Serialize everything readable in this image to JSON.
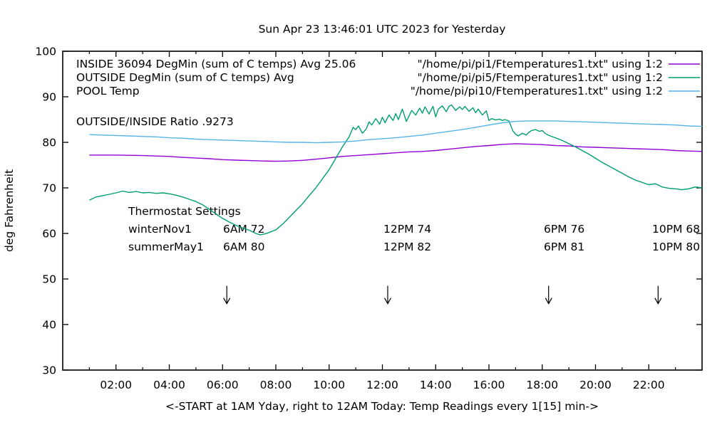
{
  "chart_data": {
    "type": "line",
    "title": "Sun Apr 23 13:46:01 UTC 2023 for Yesterday",
    "xlabel": "<-START at 1AM Yday, right to 12AM Today:  Temp Readings every 1[15] min->",
    "ylabel": "deg Fahrenheit",
    "xlim": [
      0,
      24
    ],
    "ylim": [
      30,
      100
    ],
    "grid": "off",
    "legend_position": "top-inside",
    "x_ticks": [
      {
        "h": 2,
        "label": "02:00"
      },
      {
        "h": 4,
        "label": "04:00"
      },
      {
        "h": 6,
        "label": "06:00"
      },
      {
        "h": 8,
        "label": "08:00"
      },
      {
        "h": 10,
        "label": "10:00"
      },
      {
        "h": 12,
        "label": "12:00"
      },
      {
        "h": 14,
        "label": "14:00"
      },
      {
        "h": 16,
        "label": "16:00"
      },
      {
        "h": 18,
        "label": "18:00"
      },
      {
        "h": 20,
        "label": "20:00"
      },
      {
        "h": 22,
        "label": "22:00"
      }
    ],
    "x_minor_ticks": [
      1,
      3,
      5,
      7,
      9,
      11,
      13,
      15,
      17,
      19,
      21,
      23
    ],
    "y_ticks": [
      30,
      40,
      50,
      60,
      70,
      80,
      90,
      100
    ],
    "series": [
      {
        "name": "INSIDE",
        "legend_left": "INSIDE 36094 DegMin (sum of C temps) Avg 25.06",
        "legend_right": "\"/home/pi/pi1/Ftemperatures1.txt\" using 1:2",
        "color": "#9400d3",
        "points": [
          [
            1,
            77.2
          ],
          [
            1.5,
            77.2
          ],
          [
            2,
            77.2
          ],
          [
            2.5,
            77.15
          ],
          [
            3,
            77.1
          ],
          [
            3.5,
            77.0
          ],
          [
            4,
            76.9
          ],
          [
            4.5,
            76.7
          ],
          [
            5,
            76.55
          ],
          [
            5.5,
            76.4
          ],
          [
            6,
            76.2
          ],
          [
            6.5,
            76.1
          ],
          [
            7,
            76.0
          ],
          [
            7.5,
            75.9
          ],
          [
            8,
            75.85
          ],
          [
            8.5,
            75.9
          ],
          [
            9,
            76.05
          ],
          [
            9.5,
            76.3
          ],
          [
            10,
            76.6
          ],
          [
            10.5,
            76.9
          ],
          [
            11,
            77.1
          ],
          [
            11.5,
            77.3
          ],
          [
            12,
            77.5
          ],
          [
            12.5,
            77.7
          ],
          [
            13,
            77.9
          ],
          [
            13.5,
            78.0
          ],
          [
            14,
            78.2
          ],
          [
            14.5,
            78.5
          ],
          [
            15,
            78.8
          ],
          [
            15.5,
            79.1
          ],
          [
            16,
            79.3
          ],
          [
            16.5,
            79.55
          ],
          [
            17,
            79.7
          ],
          [
            17.5,
            79.6
          ],
          [
            18,
            79.5
          ],
          [
            18.5,
            79.3
          ],
          [
            19,
            79.2
          ],
          [
            19.5,
            79.0
          ],
          [
            20,
            78.9
          ],
          [
            20.5,
            78.8
          ],
          [
            21,
            78.7
          ],
          [
            21.5,
            78.6
          ],
          [
            22,
            78.5
          ],
          [
            22.5,
            78.4
          ],
          [
            23,
            78.2
          ],
          [
            23.5,
            78.1
          ],
          [
            24,
            78.0
          ]
        ]
      },
      {
        "name": "OUTSIDE",
        "legend_left": "OUTSIDE  DegMin (sum of C temps) Avg",
        "legend_right": "\"/home/pi/pi5/Ftemperatures1.txt\" using 1:2",
        "color": "#009e73",
        "points": [
          [
            1,
            67.3
          ],
          [
            1.25,
            68.0
          ],
          [
            1.5,
            68.3
          ],
          [
            1.75,
            68.6
          ],
          [
            2,
            68.9
          ],
          [
            2.25,
            69.3
          ],
          [
            2.5,
            69.0
          ],
          [
            2.75,
            69.2
          ],
          [
            3,
            68.9
          ],
          [
            3.25,
            69.0
          ],
          [
            3.5,
            68.8
          ],
          [
            3.75,
            68.9
          ],
          [
            4,
            68.7
          ],
          [
            4.25,
            68.4
          ],
          [
            4.5,
            68.0
          ],
          [
            4.75,
            67.5
          ],
          [
            5,
            67.0
          ],
          [
            5.25,
            66.3
          ],
          [
            5.5,
            65.3
          ],
          [
            5.75,
            64.3
          ],
          [
            6,
            63.3
          ],
          [
            6.25,
            62.5
          ],
          [
            6.5,
            61.8
          ],
          [
            6.75,
            61.2
          ],
          [
            7,
            60.7
          ],
          [
            7.25,
            60.0
          ],
          [
            7.4,
            59.7
          ],
          [
            7.6,
            59.9
          ],
          [
            7.75,
            60.2
          ],
          [
            8,
            60.8
          ],
          [
            8.25,
            62.0
          ],
          [
            8.5,
            63.5
          ],
          [
            8.75,
            65.0
          ],
          [
            9,
            66.5
          ],
          [
            9.25,
            68.3
          ],
          [
            9.5,
            70.0
          ],
          [
            9.75,
            72.0
          ],
          [
            10,
            74.0
          ],
          [
            10.25,
            76.5
          ],
          [
            10.5,
            79.0
          ],
          [
            10.75,
            81.2
          ],
          [
            10.9,
            83.3
          ],
          [
            11,
            82.8
          ],
          [
            11.1,
            83.6
          ],
          [
            11.25,
            82.0
          ],
          [
            11.4,
            83.0
          ],
          [
            11.5,
            84.5
          ],
          [
            11.6,
            83.8
          ],
          [
            11.75,
            85.2
          ],
          [
            11.9,
            84.0
          ],
          [
            12,
            85.5
          ],
          [
            12.1,
            84.3
          ],
          [
            12.25,
            86.0
          ],
          [
            12.4,
            84.8
          ],
          [
            12.5,
            86.3
          ],
          [
            12.6,
            85.0
          ],
          [
            12.75,
            87.3
          ],
          [
            12.9,
            84.6
          ],
          [
            13,
            85.8
          ],
          [
            13.1,
            87.0
          ],
          [
            13.25,
            86.0
          ],
          [
            13.4,
            87.5
          ],
          [
            13.5,
            86.4
          ],
          [
            13.6,
            87.8
          ],
          [
            13.75,
            86.2
          ],
          [
            13.9,
            87.9
          ],
          [
            14,
            85.6
          ],
          [
            14.1,
            87.3
          ],
          [
            14.25,
            88.0
          ],
          [
            14.4,
            86.7
          ],
          [
            14.5,
            87.9
          ],
          [
            14.6,
            88.2
          ],
          [
            14.75,
            87.0
          ],
          [
            14.9,
            87.8
          ],
          [
            15,
            87.2
          ],
          [
            15.1,
            87.9
          ],
          [
            15.25,
            86.8
          ],
          [
            15.4,
            87.6
          ],
          [
            15.5,
            86.5
          ],
          [
            15.6,
            87.3
          ],
          [
            15.75,
            86.0
          ],
          [
            15.9,
            86.9
          ],
          [
            16,
            84.8
          ],
          [
            16.1,
            85.2
          ],
          [
            16.25,
            84.9
          ],
          [
            16.4,
            85.1
          ],
          [
            16.5,
            84.8
          ],
          [
            16.6,
            85.0
          ],
          [
            16.75,
            84.7
          ],
          [
            16.9,
            82.5
          ],
          [
            17,
            81.8
          ],
          [
            17.1,
            81.4
          ],
          [
            17.25,
            82.0
          ],
          [
            17.4,
            81.6
          ],
          [
            17.5,
            82.2
          ],
          [
            17.6,
            82.6
          ],
          [
            17.75,
            82.8
          ],
          [
            17.9,
            82.4
          ],
          [
            18,
            82.6
          ],
          [
            18.1,
            82.0
          ],
          [
            18.25,
            81.5
          ],
          [
            18.5,
            81.0
          ],
          [
            18.75,
            80.4
          ],
          [
            19,
            79.7
          ],
          [
            19.25,
            79.0
          ],
          [
            19.5,
            78.2
          ],
          [
            19.75,
            77.4
          ],
          [
            20,
            76.5
          ],
          [
            20.25,
            75.6
          ],
          [
            20.5,
            74.8
          ],
          [
            20.75,
            74.0
          ],
          [
            21,
            73.2
          ],
          [
            21.25,
            72.4
          ],
          [
            21.5,
            71.7
          ],
          [
            21.75,
            71.2
          ],
          [
            22,
            70.7
          ],
          [
            22.25,
            70.9
          ],
          [
            22.4,
            70.5
          ],
          [
            22.5,
            70.2
          ],
          [
            22.75,
            69.9
          ],
          [
            23,
            69.8
          ],
          [
            23.25,
            69.6
          ],
          [
            23.5,
            69.8
          ],
          [
            23.75,
            70.2
          ],
          [
            24,
            70.0
          ]
        ]
      },
      {
        "name": "POOL",
        "legend_left": "POOL Temp",
        "legend_right": "\"/home/pi/pi10/Ftemperatures1.txt\" using 1:2",
        "color": "#56b4e9",
        "points": [
          [
            1,
            81.7
          ],
          [
            1.5,
            81.6
          ],
          [
            2,
            81.5
          ],
          [
            2.5,
            81.4
          ],
          [
            3,
            81.3
          ],
          [
            3.5,
            81.2
          ],
          [
            4,
            81.0
          ],
          [
            4.5,
            80.9
          ],
          [
            5,
            80.7
          ],
          [
            5.5,
            80.6
          ],
          [
            6,
            80.5
          ],
          [
            6.5,
            80.4
          ],
          [
            7,
            80.3
          ],
          [
            7.5,
            80.2
          ],
          [
            8,
            80.1
          ],
          [
            8.5,
            80.0
          ],
          [
            9,
            80.0
          ],
          [
            9.5,
            79.9
          ],
          [
            10,
            80.0
          ],
          [
            10.5,
            80.1
          ],
          [
            11,
            80.3
          ],
          [
            11.5,
            80.6
          ],
          [
            12,
            80.8
          ],
          [
            12.5,
            81.0
          ],
          [
            13,
            81.3
          ],
          [
            13.5,
            81.6
          ],
          [
            14,
            82.0
          ],
          [
            14.5,
            82.4
          ],
          [
            15,
            82.8
          ],
          [
            15.5,
            83.3
          ],
          [
            16,
            83.8
          ],
          [
            16.5,
            84.3
          ],
          [
            17,
            84.6
          ],
          [
            17.5,
            84.7
          ],
          [
            18,
            84.7
          ],
          [
            18.5,
            84.7
          ],
          [
            19,
            84.6
          ],
          [
            19.5,
            84.5
          ],
          [
            20,
            84.4
          ],
          [
            20.5,
            84.3
          ],
          [
            21,
            84.2
          ],
          [
            21.5,
            84.1
          ],
          [
            22,
            84.0
          ],
          [
            22.5,
            83.9
          ],
          [
            23,
            83.8
          ],
          [
            23.5,
            83.6
          ],
          [
            24,
            83.5
          ]
        ]
      }
    ],
    "annotations": {
      "ratio": {
        "text": "OUTSIDE/INSIDE Ratio .9273"
      },
      "thermostat": {
        "title": "Thermostat Settings",
        "cell_hours": [
          6.02,
          12.04,
          18.06,
          22.13
        ],
        "rows": [
          {
            "label": "winterNov1",
            "cells": [
              "6AM 72",
              "12PM 74",
              "6PM 76",
              "10PM 68"
            ]
          },
          {
            "label": "summerMay1",
            "cells": [
              "6AM 80",
              "12PM 82",
              "6PM 81",
              "10PM 80"
            ]
          }
        ]
      },
      "arrows": {
        "hours": [
          6.16,
          12.2,
          18.24,
          22.35
        ],
        "top_f": 48.5,
        "bottom_f": 45.2
      }
    }
  }
}
